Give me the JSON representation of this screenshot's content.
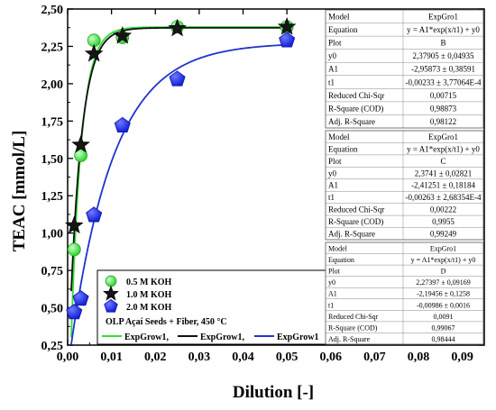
{
  "chart_data": {
    "type": "scatter",
    "xlabel": "Dilution [-]",
    "ylabel": "TEAC [mmol/L]",
    "xlim": [
      0.0,
      0.095
    ],
    "ylim": [
      0.25,
      2.5
    ],
    "x_ticks": [
      "0,00",
      "0,01",
      "0,02",
      "0,03",
      "0,04",
      "0,05",
      "0,06",
      "0,07",
      "0,08",
      "0,09"
    ],
    "y_ticks": [
      "0,25",
      "0,50",
      "0,75",
      "1,00",
      "1,25",
      "1,50",
      "1,75",
      "2,00",
      "2,25",
      "2,50"
    ],
    "x_tick_values": [
      0,
      0.01,
      0.02,
      0.03,
      0.04,
      0.05,
      0.06,
      0.07,
      0.08,
      0.09
    ],
    "y_tick_values": [
      0.25,
      0.5,
      0.75,
      1.0,
      1.25,
      1.5,
      1.75,
      2.0,
      2.25,
      2.5
    ],
    "series": [
      {
        "name": "0.5 M KOH",
        "marker": "circle",
        "color": "#39e639",
        "x": [
          0.0015,
          0.003,
          0.006,
          0.0125,
          0.025,
          0.05
        ],
        "y": [
          0.89,
          1.52,
          2.29,
          2.31,
          2.38,
          2.38
        ]
      },
      {
        "name": "1.0 M KOH",
        "marker": "star",
        "color": "#111111",
        "x": [
          0.0015,
          0.003,
          0.006,
          0.0125,
          0.025,
          0.05
        ],
        "y": [
          1.05,
          1.59,
          2.2,
          2.32,
          2.37,
          2.38
        ]
      },
      {
        "name": "2.0 M KOH",
        "marker": "pentagon",
        "color": "#1f2ee8",
        "x": [
          0.0015,
          0.003,
          0.006,
          0.0125,
          0.025,
          0.05
        ],
        "y": [
          0.47,
          0.56,
          1.12,
          1.72,
          2.03,
          2.29
        ]
      }
    ],
    "fits": [
      {
        "name": "ExpGrow1",
        "color": "#33dd33",
        "y0": 2.37905,
        "A1": -2.95873,
        "t1": -0.00233
      },
      {
        "name": "ExpGrow1",
        "color": "#111111",
        "y0": 2.3741,
        "A1": -2.41251,
        "t1": -0.00263
      },
      {
        "name": "ExpGrow1",
        "color": "#2233cc",
        "y0": 2.27397,
        "A1": -2.19456,
        "t1": -0.00986
      }
    ],
    "legend": {
      "entries": [
        "0.5 M KOH",
        "1.0 M KOH",
        "2.0 M KOH"
      ],
      "subtitle": "OLP Açaí Seeds + Fiber, 450 °C",
      "fit_labels": [
        "ExpGrow1,",
        "ExpGrow1,",
        "ExpGrow1"
      ],
      "placement": "bottom-left"
    },
    "fit_tables": [
      {
        "rows": [
          [
            "Model",
            "ExpGro1"
          ],
          [
            "Equation",
            "y = A1*exp(x/t1) + y0"
          ],
          [
            "Plot",
            "B"
          ],
          [
            "y0",
            "2,37905 ± 0,04935"
          ],
          [
            "A1",
            "-2,95873 ± 0,38591"
          ],
          [
            "t1",
            "-0,00233 ± 3,77064E-4"
          ],
          [
            "Reduced Chi-Sqr",
            "0,00715"
          ],
          [
            "R-Square (COD)",
            "0,98873"
          ],
          [
            "Adj. R-Square",
            "0,98122"
          ]
        ]
      },
      {
        "rows": [
          [
            "Model",
            "ExpGro1"
          ],
          [
            "Equation",
            "y = A1*exp(x/t1) + y0"
          ],
          [
            "Plot",
            "C"
          ],
          [
            "y0",
            "2,3741 ± 0,02821"
          ],
          [
            "A1",
            "-2,41251 ± 0,18184"
          ],
          [
            "t1",
            "-0,00263 ± 2,68354E-4"
          ],
          [
            "Reduced Chi-Sqr",
            "0,00222"
          ],
          [
            "R-Square (COD)",
            "0,9955"
          ],
          [
            "Adj. R-Square",
            "0,99249"
          ]
        ]
      },
      {
        "rows": [
          [
            "Model",
            "ExpGro1"
          ],
          [
            "Equation",
            "y = A1*exp(x/t1) + y0"
          ],
          [
            "Plot",
            "D"
          ],
          [
            "y0",
            "2,27397 ± 0,09169"
          ],
          [
            "A1",
            "-2,19456 ± 0,1258"
          ],
          [
            "t1",
            "-0,00986 ± 0,0016"
          ],
          [
            "Reduced Chi-Sqr",
            "0,0091"
          ],
          [
            "R-Square (COD)",
            "0,99067"
          ],
          [
            "Adj. R-Square",
            "0,98444"
          ]
        ]
      }
    ]
  }
}
